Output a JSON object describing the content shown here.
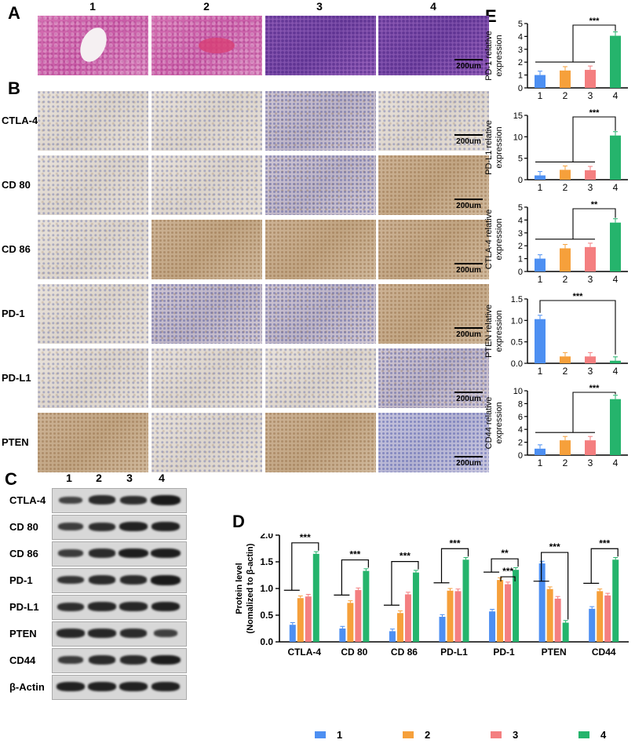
{
  "panels": {
    "a": "A",
    "b": "B",
    "c": "C",
    "d": "D",
    "e": "E"
  },
  "columns": [
    "1",
    "2",
    "3",
    "4"
  ],
  "scale_text": "200um",
  "ihc_rows": [
    "CTLA-4",
    "CD 80",
    "CD 86",
    "PD-1",
    "PD-L1",
    "PTEN"
  ],
  "wb": {
    "columns": [
      "1",
      "2",
      "3",
      "4"
    ],
    "rows": [
      "CTLA-4",
      "CD 80",
      "CD 86",
      "PD-1",
      "PD-L1",
      "PTEN",
      "CD44",
      "β-Actin"
    ]
  },
  "colors": {
    "g1": "#4d8ff2",
    "g2": "#f6a03b",
    "g3": "#f47f80",
    "g4": "#25b46c"
  },
  "chart_data": [
    {
      "type": "bar",
      "panel": "D",
      "categories": [
        "CTLA-4",
        "CD 80",
        "CD 86",
        "PD-L1",
        "PD-1",
        "PTEN",
        "CD44"
      ],
      "series": [
        {
          "name": "1",
          "values": [
            0.32,
            0.25,
            0.2,
            0.47,
            0.57,
            1.47,
            0.62
          ]
        },
        {
          "name": "2",
          "values": [
            0.82,
            0.73,
            0.54,
            0.96,
            1.16,
            0.99,
            0.95
          ]
        },
        {
          "name": "3",
          "values": [
            0.85,
            0.97,
            0.89,
            0.95,
            1.08,
            0.81,
            0.87
          ]
        },
        {
          "name": "4",
          "values": [
            1.65,
            1.33,
            1.3,
            1.54,
            1.35,
            0.36,
            1.54
          ]
        }
      ],
      "ylabel": "Protein  level\n(Nomalized to β-actin)",
      "ylim": [
        0,
        2.0
      ],
      "yticks": [
        "0.0",
        "0.5",
        "1.0",
        "1.5",
        "2.0"
      ],
      "annotations": [
        "***",
        "***",
        "***",
        "***",
        "**",
        "***",
        "***",
        "***"
      ]
    },
    {
      "type": "bar",
      "panel": "E",
      "categories": [
        "1",
        "2",
        "3",
        "4"
      ],
      "values": [
        1.0,
        1.35,
        1.4,
        4.05
      ],
      "ylabel": "PD-1 relative\nexpression",
      "ylim": [
        0,
        5
      ],
      "yticks": [
        "0",
        "1",
        "2",
        "3",
        "4",
        "5"
      ],
      "annotation": "***"
    },
    {
      "type": "bar",
      "panel": "E",
      "categories": [
        "1",
        "2",
        "3",
        "4"
      ],
      "values": [
        1.0,
        2.3,
        2.2,
        10.3
      ],
      "ylabel": "PD-L1 relative\nexpression",
      "ylim": [
        0,
        15
      ],
      "yticks": [
        "0",
        "5",
        "10",
        "15"
      ],
      "annotation": "***"
    },
    {
      "type": "bar",
      "panel": "E",
      "categories": [
        "1",
        "2",
        "3",
        "4"
      ],
      "values": [
        1.0,
        1.8,
        1.9,
        3.8
      ],
      "ylabel": "CTLA-4 relative\nexpression",
      "ylim": [
        0,
        5
      ],
      "yticks": [
        "0",
        "1",
        "2",
        "3",
        "4",
        "5"
      ],
      "annotation": "**"
    },
    {
      "type": "bar",
      "panel": "E",
      "categories": [
        "1",
        "2",
        "3",
        "4"
      ],
      "values": [
        1.03,
        0.16,
        0.16,
        0.06
      ],
      "ylabel": "PTEN relative\nexpression",
      "ylim": [
        0,
        1.5
      ],
      "yticks": [
        "0.0",
        "0.5",
        "1.0",
        "1.5"
      ],
      "annotation": "***"
    },
    {
      "type": "bar",
      "panel": "E",
      "categories": [
        "1",
        "2",
        "3",
        "4"
      ],
      "values": [
        1.0,
        2.3,
        2.3,
        8.7
      ],
      "ylabel": "CD44 relative\nexpression",
      "ylim": [
        0,
        10
      ],
      "yticks": [
        "0",
        "2",
        "4",
        "6",
        "8",
        "10"
      ],
      "annotation": "***"
    }
  ]
}
